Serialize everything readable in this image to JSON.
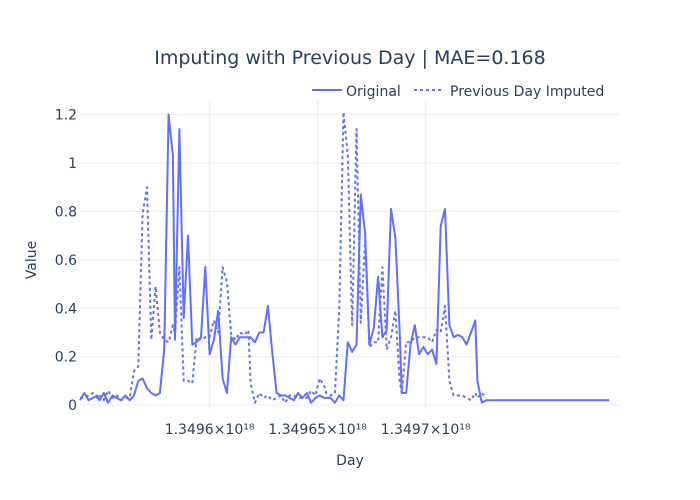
{
  "chart_data": {
    "type": "line",
    "title": "Imputing with Previous Day | MAE=0.168",
    "xlabel": "Day",
    "ylabel": "Value",
    "xlim": [
      1.34954e+18,
      1.34979e+18
    ],
    "ylim": [
      -0.02,
      1.26
    ],
    "x_ticks": [
      {
        "value": 1.3496e+18,
        "label": "1.3496×10¹⁸"
      },
      {
        "value": 1.34965e+18,
        "label": "1.34965×10¹⁸"
      },
      {
        "value": 1.3497e+18,
        "label": "1.3497×10¹⁸"
      }
    ],
    "y_ticks": [
      {
        "value": 0,
        "label": "0"
      },
      {
        "value": 0.2,
        "label": "0.2"
      },
      {
        "value": 0.4,
        "label": "0.4"
      },
      {
        "value": 0.6,
        "label": "0.6"
      },
      {
        "value": 0.8,
        "label": "0.8"
      },
      {
        "value": 1,
        "label": "1"
      },
      {
        "value": 1.2,
        "label": "1.2"
      }
    ],
    "legend_position": "top-right",
    "grid": true,
    "series": [
      {
        "name": "Original",
        "color": "#636efa",
        "dash": "solid",
        "x": [
          1.34954e+18,
          1.349542e+18,
          1.349544e+18,
          1.349546e+18,
          1.349548e+18,
          1.349549e+18,
          1.349551e+18,
          1.349553e+18,
          1.349555e+18,
          1.349557e+18,
          1.349559e+18,
          1.349561e+18,
          1.349563e+18,
          1.349565e+18,
          1.349567e+18,
          1.349569e+18,
          1.349571e+18,
          1.349573e+18,
          1.349575e+18,
          1.349577e+18,
          1.349579e+18,
          1.349581e+18,
          1.349583e+18,
          1.349584e+18,
          1.349586e+18,
          1.349588e+18,
          1.34959e+18,
          1.349592e+18,
          1.349594e+18,
          1.349596e+18,
          1.349598e+18,
          1.3496e+18,
          1.349602e+18,
          1.349604e+18,
          1.349606e+18,
          1.349608e+18,
          1.34961e+18,
          1.349612e+18,
          1.349614e+18,
          1.349616e+18,
          1.349618e+18,
          1.349619e+18,
          1.349621e+18,
          1.349623e+18,
          1.349625e+18,
          1.349627e+18,
          1.349629e+18,
          1.349631e+18,
          1.349633e+18,
          1.349635e+18,
          1.349637e+18,
          1.349639e+18,
          1.349641e+18,
          1.349643e+18,
          1.349645e+18,
          1.349647e+18,
          1.349649e+18,
          1.349651e+18,
          1.349653e+18,
          1.349654e+18,
          1.349656e+18,
          1.349658e+18,
          1.34966e+18,
          1.349662e+18,
          1.349664e+18,
          1.349666e+18,
          1.349668e+18,
          1.34967e+18,
          1.349672e+18,
          1.349674e+18,
          1.349676e+18,
          1.349678e+18,
          1.34968e+18,
          1.349682e+18,
          1.349684e+18,
          1.349686e+18,
          1.349688e+18,
          1.349689e+18,
          1.349691e+18,
          1.349693e+18,
          1.349695e+18,
          1.349697e+18,
          1.349699e+18,
          1.349701e+18,
          1.349703e+18,
          1.349705e+18,
          1.349707e+18,
          1.349709e+18,
          1.349711e+18,
          1.349713e+18,
          1.349715e+18,
          1.349717e+18,
          1.349719e+18,
          1.349721e+18,
          1.349723e+18,
          1.349724e+18,
          1.349726e+18,
          1.349728e+18,
          1.34973e+18,
          1.349732e+18,
          1.349734e+18,
          1.349736e+18,
          1.349738e+18,
          1.34974e+18,
          1.349742e+18,
          1.349744e+18,
          1.349746e+18,
          1.349748e+18,
          1.34975e+18,
          1.349752e+18,
          1.349754e+18,
          1.349756e+18,
          1.349758e+18,
          1.349759e+18,
          1.349761e+18,
          1.349763e+18,
          1.349765e+18,
          1.349767e+18,
          1.349769e+18,
          1.349771e+18,
          1.349773e+18,
          1.349775e+18,
          1.349777e+18,
          1.349779e+18,
          1.349781e+18,
          1.349783e+18,
          1.349785e+18
        ],
        "values": [
          0.02,
          0.05,
          0.02,
          0.03,
          0.04,
          0.02,
          0.05,
          0.01,
          0.04,
          0.03,
          0.02,
          0.04,
          0.02,
          0.04,
          0.1,
          0.11,
          0.07,
          0.05,
          0.04,
          0.05,
          0.23,
          1.2,
          1.03,
          0.27,
          1.14,
          0.36,
          0.7,
          0.25,
          0.26,
          0.28,
          0.57,
          0.21,
          0.27,
          0.39,
          0.11,
          0.05,
          0.28,
          0.25,
          0.28,
          0.28,
          0.28,
          0.28,
          0.26,
          0.3,
          0.3,
          0.41,
          0.22,
          0.05,
          0.04,
          0.04,
          0.03,
          0.02,
          0.05,
          0.03,
          0.05,
          0.01,
          0.03,
          0.04,
          0.03,
          0.03,
          0.03,
          0.01,
          0.04,
          0.02,
          0.26,
          0.22,
          0.25,
          0.87,
          0.71,
          0.25,
          0.32,
          0.53,
          0.28,
          0.31,
          0.81,
          0.69,
          0.3,
          0.05,
          0.05,
          0.25,
          0.33,
          0.21,
          0.24,
          0.21,
          0.23,
          0.17,
          0.74,
          0.81,
          0.33,
          0.28,
          0.29,
          0.28,
          0.25,
          0.3,
          0.35,
          0.1,
          0.01,
          0.02,
          0.02,
          0.02,
          0.02,
          0.02,
          0.02,
          0.02,
          0.02,
          0.02,
          0.02,
          0.02,
          0.02,
          0.02,
          0.02,
          0.02,
          0.02,
          0.02,
          0.02,
          0.02,
          0.02,
          0.02,
          0.02,
          0.02,
          0.02,
          0.02,
          0.02,
          0.02,
          0.02,
          0.02,
          0.02
        ]
      },
      {
        "name": "Previous Day Imputed",
        "color": "#636efa",
        "dash": "dot",
        "x": [
          1.34954e+18,
          1.349542e+18,
          1.349544e+18,
          1.349546e+18,
          1.349548e+18,
          1.349549e+18,
          1.349551e+18,
          1.349553e+18,
          1.349555e+18,
          1.349557e+18,
          1.349559e+18,
          1.349561e+18,
          1.349563e+18,
          1.349565e+18,
          1.349567e+18,
          1.349569e+18,
          1.349571e+18,
          1.349573e+18,
          1.349575e+18,
          1.349577e+18,
          1.349579e+18,
          1.349581e+18,
          1.349583e+18,
          1.349584e+18,
          1.349586e+18,
          1.349588e+18,
          1.34959e+18,
          1.349592e+18,
          1.349594e+18,
          1.349596e+18,
          1.349598e+18,
          1.3496e+18,
          1.349602e+18,
          1.349604e+18,
          1.349606e+18,
          1.349608e+18,
          1.34961e+18,
          1.349612e+18,
          1.349614e+18,
          1.349616e+18,
          1.349618e+18,
          1.349619e+18,
          1.349621e+18,
          1.349623e+18,
          1.349625e+18,
          1.349627e+18,
          1.349629e+18,
          1.349631e+18,
          1.349633e+18,
          1.349635e+18,
          1.349637e+18,
          1.349639e+18,
          1.349641e+18,
          1.349643e+18,
          1.349645e+18,
          1.349647e+18,
          1.349649e+18,
          1.349651e+18,
          1.349653e+18,
          1.349654e+18,
          1.349656e+18,
          1.349658e+18,
          1.34966e+18,
          1.349662e+18,
          1.349664e+18,
          1.349666e+18,
          1.349668e+18,
          1.34967e+18,
          1.349672e+18,
          1.349674e+18,
          1.349676e+18,
          1.349678e+18,
          1.34968e+18,
          1.349682e+18,
          1.349684e+18,
          1.349686e+18,
          1.349688e+18,
          1.349689e+18,
          1.349691e+18,
          1.349693e+18,
          1.349695e+18,
          1.349697e+18,
          1.349699e+18,
          1.349701e+18,
          1.349703e+18,
          1.349705e+18,
          1.349707e+18,
          1.349709e+18,
          1.349711e+18,
          1.349713e+18,
          1.349715e+18,
          1.349717e+18,
          1.349719e+18,
          1.349721e+18,
          1.349723e+18,
          1.349724e+18,
          1.349726e+18,
          1.349728e+18
        ],
        "values": [
          0.03,
          0.03,
          0.04,
          0.05,
          0.03,
          0.04,
          0.02,
          0.06,
          0.03,
          0.04,
          0.02,
          0.03,
          0.03,
          0.14,
          0.16,
          0.79,
          0.9,
          0.27,
          0.49,
          0.3,
          0.27,
          0.26,
          0.33,
          0.29,
          0.57,
          0.1,
          0.1,
          0.09,
          0.28,
          0.27,
          0.28,
          0.28,
          0.35,
          0.3,
          0.57,
          0.51,
          0.29,
          0.27,
          0.3,
          0.29,
          0.31,
          0.09,
          0.01,
          0.05,
          0.03,
          0.04,
          0.02,
          0.03,
          0.04,
          0.01,
          0.04,
          0.04,
          0.03,
          0.03,
          0.03,
          0.06,
          0.04,
          0.11,
          0.08,
          0.05,
          0.04,
          0.05,
          0.39,
          1.21,
          1.03,
          0.33,
          1.14,
          0.34,
          0.68,
          0.24,
          0.26,
          0.26,
          0.57,
          0.23,
          0.28,
          0.39,
          0.1,
          0.05,
          0.26,
          0.26,
          0.28,
          0.28,
          0.28,
          0.28,
          0.26,
          0.31,
          0.3,
          0.41,
          0.1,
          0.04,
          0.04,
          0.04,
          0.03,
          0.02,
          0.05,
          0.03,
          0.05,
          0.03
        ]
      }
    ]
  }
}
